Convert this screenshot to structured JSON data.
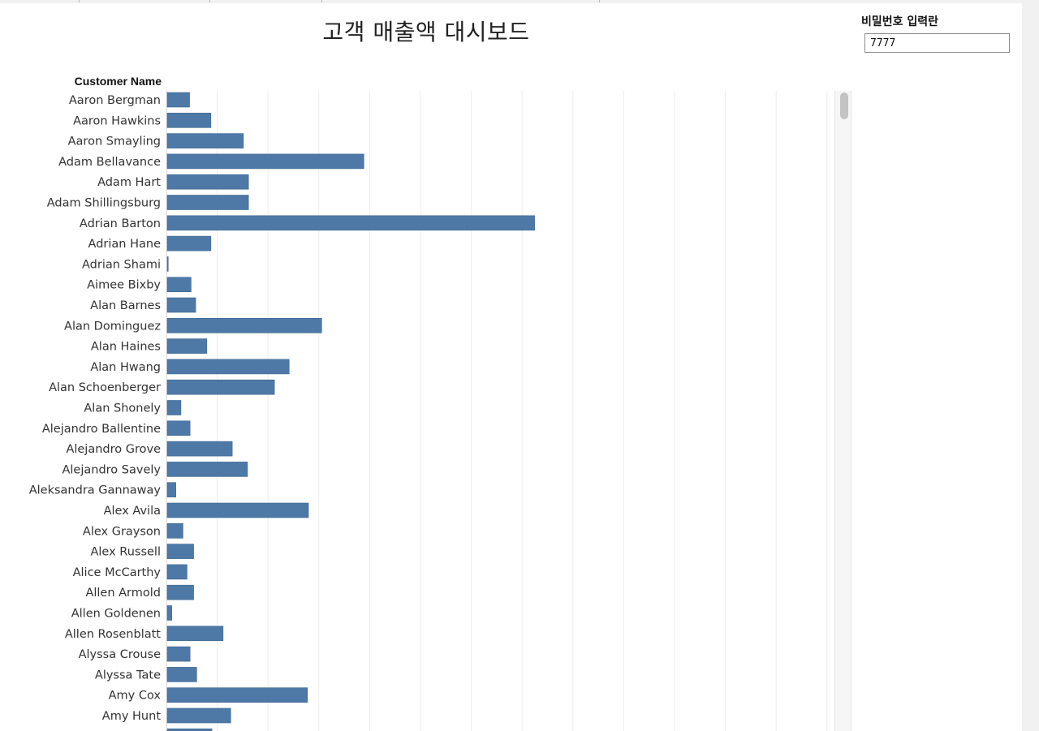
{
  "dashboard": {
    "title": "고객 매출액 대시보드"
  },
  "password": {
    "label": "비밀번호 입력란",
    "value": "7777"
  },
  "colors": {
    "bar": "#4e79a7",
    "grid": "#ececec"
  },
  "chart_data": {
    "type": "bar",
    "orientation": "horizontal",
    "row_header": "Customer Name",
    "categories": [
      "Aaron Bergman",
      "Aaron Hawkins",
      "Aaron Smayling",
      "Adam Bellavance",
      "Adam Hart",
      "Adam Shillingsburg",
      "Adrian Barton",
      "Adrian Hane",
      "Adrian Shami",
      "Aimee Bixby",
      "Alan Barnes",
      "Alan Dominguez",
      "Alan Haines",
      "Alan Hwang",
      "Alan Schoenberger",
      "Alan Shonely",
      "Alejandro Ballentine",
      "Alejandro Grove",
      "Alejandro Savely",
      "Aleksandra Gannaway",
      "Alex Avila",
      "Alex Grayson",
      "Alex Russell",
      "Alice McCarthy",
      "Allen Armold",
      "Allen Goldenen",
      "Allen Rosenblatt",
      "Alyssa Crouse",
      "Alyssa Tate",
      "Amy Cox",
      "Amy Hunt",
      ""
    ],
    "values": [
      0.44,
      0.86,
      1.5,
      3.87,
      1.6,
      1.6,
      7.23,
      0.86,
      0.02,
      0.47,
      0.56,
      3.04,
      0.78,
      2.4,
      2.11,
      0.27,
      0.45,
      1.28,
      1.58,
      0.17,
      2.78,
      0.31,
      0.52,
      0.39,
      0.52,
      0.09,
      1.1,
      0.45,
      0.58,
      2.76,
      1.25,
      0.88
    ],
    "xlim": [
      0,
      13
    ],
    "grid": true
  }
}
